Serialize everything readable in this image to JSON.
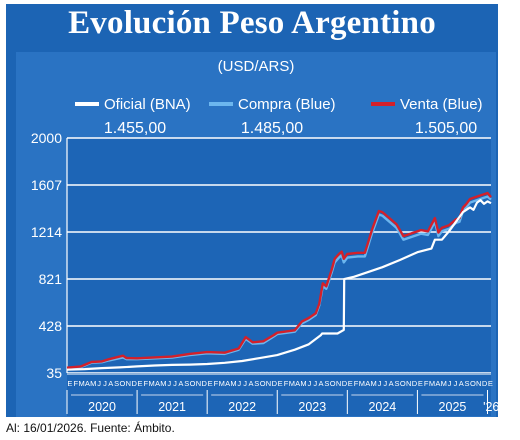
{
  "header": {
    "title": "Evolución Peso Argentino"
  },
  "chart_data": {
    "type": "line",
    "title": "Evolución Peso Argentino",
    "subtitle": "(USD/ARS)",
    "y_ticks": [
      35,
      428,
      821,
      1214,
      1607,
      2000
    ],
    "ylim": [
      35,
      2000
    ],
    "y_tick_labels": [
      "35",
      "428",
      "821",
      "1214",
      "1607",
      "2000"
    ],
    "xlim": [
      2020.0,
      2026.05
    ],
    "month_letters": [
      "E",
      "F",
      "M",
      "A",
      "M",
      "J",
      "J",
      "A",
      "S",
      "O",
      "N",
      "D"
    ],
    "years": [
      "2020",
      "2021",
      "2022",
      "2023",
      "2024",
      "2025",
      "'26"
    ],
    "grid": true,
    "legend_position": "top",
    "series": [
      {
        "name": "Oficial (BNA)",
        "color": "#ffffff",
        "last_label": "1.455,00",
        "points": [
          [
            2020.0,
            63
          ],
          [
            2020.25,
            68
          ],
          [
            2020.5,
            76
          ],
          [
            2020.75,
            82
          ],
          [
            2021.0,
            90
          ],
          [
            2021.25,
            98
          ],
          [
            2021.5,
            103
          ],
          [
            2021.75,
            105
          ],
          [
            2022.0,
            110
          ],
          [
            2022.25,
            120
          ],
          [
            2022.5,
            135
          ],
          [
            2022.75,
            160
          ],
          [
            2023.0,
            185
          ],
          [
            2023.25,
            230
          ],
          [
            2023.45,
            275
          ],
          [
            2023.62,
            350
          ],
          [
            2023.64,
            365
          ],
          [
            2023.86,
            365
          ],
          [
            2023.95,
            395
          ],
          [
            2023.955,
            820
          ],
          [
            2024.1,
            840
          ],
          [
            2024.3,
            880
          ],
          [
            2024.5,
            920
          ],
          [
            2024.75,
            980
          ],
          [
            2025.0,
            1045
          ],
          [
            2025.2,
            1075
          ],
          [
            2025.25,
            1150
          ],
          [
            2025.35,
            1150
          ],
          [
            2025.45,
            1220
          ],
          [
            2025.55,
            1300
          ],
          [
            2025.65,
            1380
          ],
          [
            2025.75,
            1420
          ],
          [
            2025.8,
            1400
          ],
          [
            2025.85,
            1460
          ],
          [
            2025.9,
            1480
          ],
          [
            2025.95,
            1450
          ],
          [
            2026.0,
            1470
          ],
          [
            2026.05,
            1455
          ]
        ]
      },
      {
        "name": "Compra (Blue)",
        "color": "#6cb6ee",
        "last_label": "1.485,00",
        "points": [
          [
            2020.0,
            75
          ],
          [
            2020.2,
            85
          ],
          [
            2020.35,
            120
          ],
          [
            2020.5,
            125
          ],
          [
            2020.6,
            140
          ],
          [
            2020.8,
            165
          ],
          [
            2020.85,
            150
          ],
          [
            2021.0,
            150
          ],
          [
            2021.5,
            165
          ],
          [
            2021.75,
            185
          ],
          [
            2022.0,
            200
          ],
          [
            2022.25,
            195
          ],
          [
            2022.45,
            230
          ],
          [
            2022.55,
            320
          ],
          [
            2022.65,
            280
          ],
          [
            2022.8,
            285
          ],
          [
            2022.95,
            340
          ],
          [
            2023.0,
            360
          ],
          [
            2023.25,
            380
          ],
          [
            2023.35,
            450
          ],
          [
            2023.45,
            480
          ],
          [
            2023.55,
            520
          ],
          [
            2023.6,
            600
          ],
          [
            2023.65,
            760
          ],
          [
            2023.7,
            740
          ],
          [
            2023.78,
            880
          ],
          [
            2023.82,
            960
          ],
          [
            2023.88,
            1000
          ],
          [
            2023.92,
            1020
          ],
          [
            2023.95,
            960
          ],
          [
            2024.0,
            1000
          ],
          [
            2024.15,
            1010
          ],
          [
            2024.25,
            1010
          ],
          [
            2024.35,
            1200
          ],
          [
            2024.45,
            1360
          ],
          [
            2024.5,
            1350
          ],
          [
            2024.6,
            1300
          ],
          [
            2024.7,
            1250
          ],
          [
            2024.8,
            1150
          ],
          [
            2024.95,
            1180
          ],
          [
            2025.05,
            1200
          ],
          [
            2025.15,
            1190
          ],
          [
            2025.25,
            1300
          ],
          [
            2025.3,
            1180
          ],
          [
            2025.35,
            1220
          ],
          [
            2025.45,
            1240
          ],
          [
            2025.55,
            1290
          ],
          [
            2025.6,
            1300
          ],
          [
            2025.65,
            1390
          ],
          [
            2025.7,
            1420
          ],
          [
            2025.75,
            1460
          ],
          [
            2025.8,
            1470
          ],
          [
            2025.9,
            1490
          ],
          [
            2025.95,
            1500
          ],
          [
            2026.0,
            1510
          ],
          [
            2026.05,
            1485
          ]
        ]
      },
      {
        "name": "Venta (Blue)",
        "color": "#d3202a",
        "last_label": "1.505,00",
        "points": [
          [
            2020.0,
            79
          ],
          [
            2020.2,
            90
          ],
          [
            2020.35,
            127
          ],
          [
            2020.5,
            132
          ],
          [
            2020.6,
            150
          ],
          [
            2020.8,
            180
          ],
          [
            2020.85,
            160
          ],
          [
            2021.0,
            158
          ],
          [
            2021.5,
            172
          ],
          [
            2021.75,
            195
          ],
          [
            2022.0,
            210
          ],
          [
            2022.25,
            205
          ],
          [
            2022.45,
            240
          ],
          [
            2022.55,
            335
          ],
          [
            2022.65,
            292
          ],
          [
            2022.8,
            300
          ],
          [
            2022.95,
            352
          ],
          [
            2023.0,
            372
          ],
          [
            2023.25,
            392
          ],
          [
            2023.35,
            465
          ],
          [
            2023.45,
            495
          ],
          [
            2023.55,
            535
          ],
          [
            2023.6,
            615
          ],
          [
            2023.65,
            785
          ],
          [
            2023.7,
            760
          ],
          [
            2023.78,
            905
          ],
          [
            2023.82,
            990
          ],
          [
            2023.88,
            1030
          ],
          [
            2023.92,
            1050
          ],
          [
            2023.95,
            990
          ],
          [
            2024.0,
            1030
          ],
          [
            2024.15,
            1040
          ],
          [
            2024.25,
            1040
          ],
          [
            2024.35,
            1230
          ],
          [
            2024.45,
            1390
          ],
          [
            2024.5,
            1380
          ],
          [
            2024.6,
            1330
          ],
          [
            2024.7,
            1280
          ],
          [
            2024.8,
            1180
          ],
          [
            2024.95,
            1210
          ],
          [
            2025.05,
            1230
          ],
          [
            2025.15,
            1220
          ],
          [
            2025.25,
            1330
          ],
          [
            2025.3,
            1210
          ],
          [
            2025.35,
            1250
          ],
          [
            2025.45,
            1270
          ],
          [
            2025.55,
            1320
          ],
          [
            2025.6,
            1330
          ],
          [
            2025.65,
            1420
          ],
          [
            2025.7,
            1450
          ],
          [
            2025.75,
            1490
          ],
          [
            2025.8,
            1500
          ],
          [
            2025.9,
            1520
          ],
          [
            2025.95,
            1530
          ],
          [
            2026.0,
            1540
          ],
          [
            2026.05,
            1505
          ]
        ]
      }
    ]
  },
  "footer": {
    "text": "Al: 16/01/2026. Fuente: Ámbito."
  }
}
